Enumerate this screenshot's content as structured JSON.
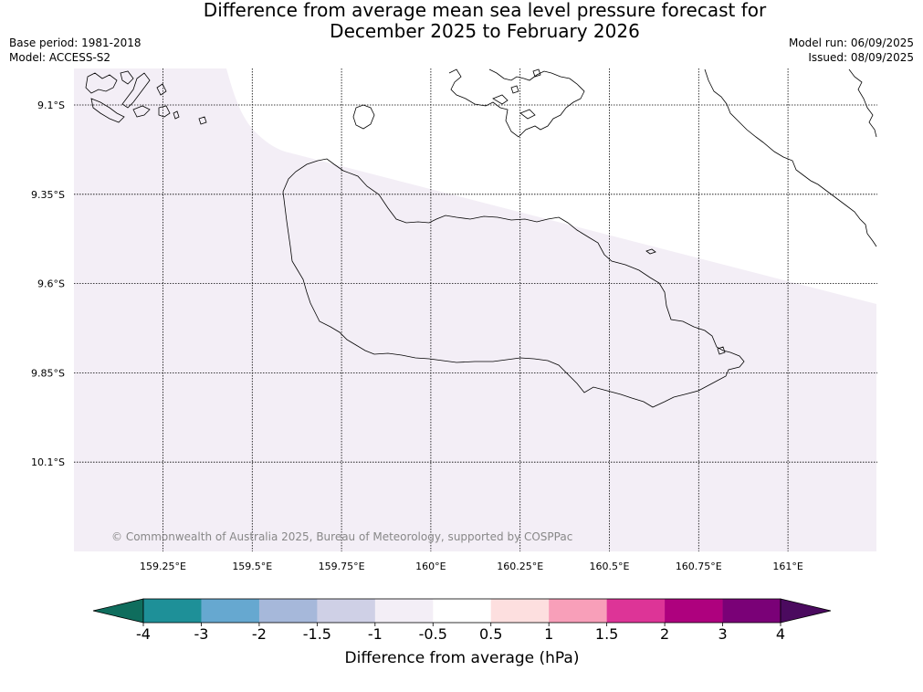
{
  "header": {
    "title_line1": "Difference from average mean sea level pressure forecast for",
    "title_line2": "December 2025 to February 2026",
    "base_period": "Base period: 1981-2018",
    "model": "Model: ACCESS-S2",
    "model_run": "Model run: 06/09/2025",
    "issued": "Issued: 08/09/2025"
  },
  "map": {
    "lon_ticks": [
      {
        "value": 159.25,
        "label": "159.25°E"
      },
      {
        "value": 159.5,
        "label": "159.5°E"
      },
      {
        "value": 159.75,
        "label": "159.75°E"
      },
      {
        "value": 160.0,
        "label": "160°E"
      },
      {
        "value": 160.25,
        "label": "160.25°E"
      },
      {
        "value": 160.5,
        "label": "160.5°E"
      },
      {
        "value": 160.75,
        "label": "160.75°E"
      },
      {
        "value": 161.0,
        "label": "161°E"
      }
    ],
    "lat_ticks": [
      {
        "value": -9.1,
        "label": "9.1°S"
      },
      {
        "value": -9.35,
        "label": "9.35°S"
      },
      {
        "value": -9.6,
        "label": "9.6°S"
      },
      {
        "value": -9.85,
        "label": "9.85°S"
      },
      {
        "value": -10.1,
        "label": "10.1°S"
      }
    ],
    "fill_color": "#f3eef6",
    "copyright": "© Commonwealth of Australia 2025, Bureau of Meteorology, supported by COSPPac"
  },
  "colorbar": {
    "label": "Difference from average (hPa)",
    "ticks": [
      "-4",
      "-3",
      "-2",
      "-1.5",
      "-1",
      "-0.5",
      "0.5",
      "1",
      "1.5",
      "2",
      "3",
      "4"
    ],
    "low_extend_color": "#0f6d5d",
    "high_extend_color": "#4b0a5f",
    "colors": [
      "#1e9098",
      "#66a8d0",
      "#a6b8da",
      "#cfd0e6",
      "#f3eef6",
      "#ffffff",
      "#fddfdf",
      "#f89fb9",
      "#dd3497",
      "#ae017e",
      "#7a0177"
    ]
  }
}
